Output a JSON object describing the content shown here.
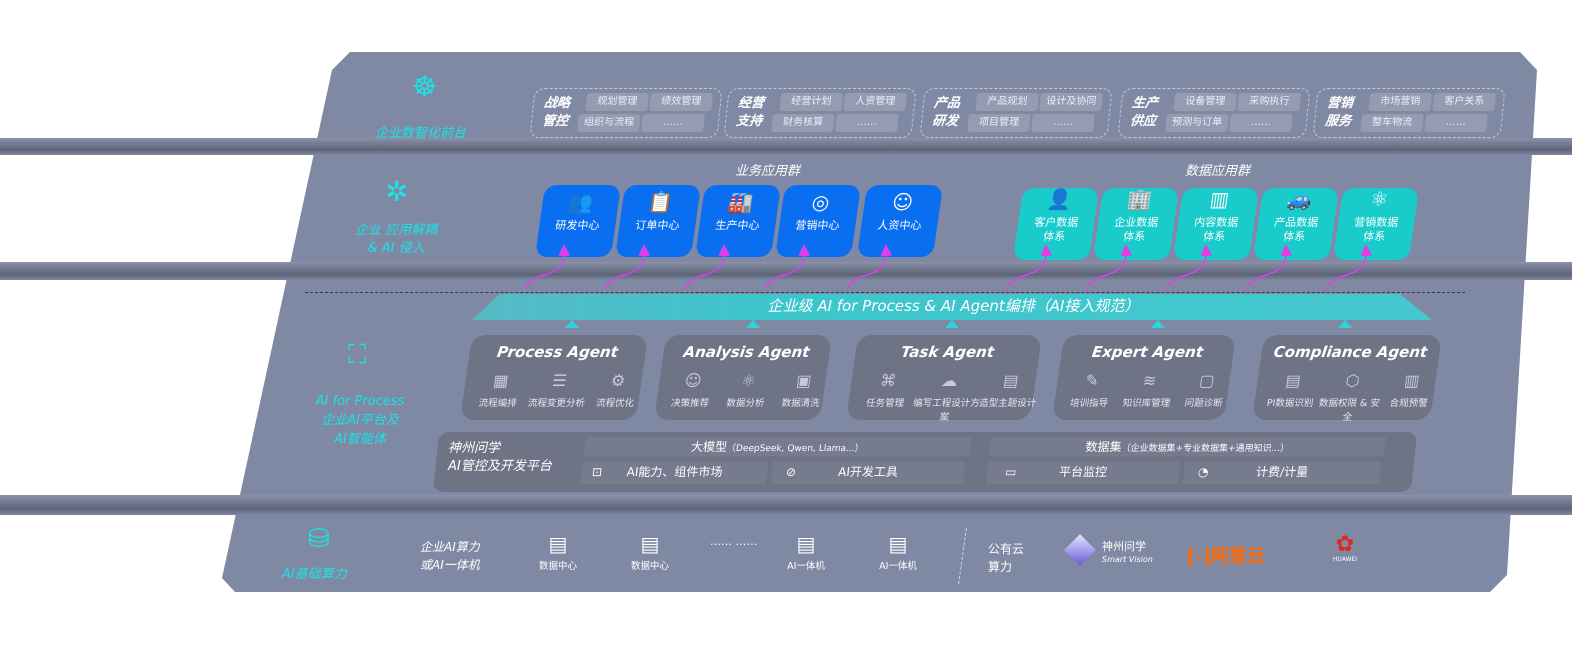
{
  "front": {
    "label": "企业数智化前台",
    "icon": "brain-icon",
    "groups": [
      {
        "title": [
          "战略",
          "管控"
        ],
        "chips": [
          "规划管理",
          "绩效管理",
          "组织与流程",
          "……"
        ]
      },
      {
        "title": [
          "经营",
          "支持"
        ],
        "chips": [
          "经营计划",
          "人资管理",
          "财务核算",
          "……"
        ]
      },
      {
        "title": [
          "产品",
          "研发"
        ],
        "chips": [
          "产品规划",
          "设计及协同",
          "项目管理",
          "……"
        ]
      },
      {
        "title": [
          "生产",
          "供应"
        ],
        "chips": [
          "设备管理",
          "采购执行",
          "预测与订单",
          "……"
        ]
      },
      {
        "title": [
          "营销",
          "服务"
        ],
        "chips": [
          "市场营销",
          "客户关系",
          "整车物流",
          "……"
        ]
      }
    ]
  },
  "apps": {
    "label": [
      "企业 应用解耦",
      "& AI 侵入"
    ],
    "icon": "network-node-icon",
    "business_title": "业务应用群",
    "business": [
      {
        "label": "研发中心",
        "icon": "team-icon",
        "glyph": "👥"
      },
      {
        "label": "订单中心",
        "icon": "clipboard-icon",
        "glyph": "📋"
      },
      {
        "label": "生产中心",
        "icon": "factory-icon",
        "glyph": "🏭"
      },
      {
        "label": "营销中心",
        "icon": "target-icon",
        "glyph": "◎"
      },
      {
        "label": "人资中心",
        "icon": "person-icon",
        "glyph": "☺"
      }
    ],
    "data_title": "数据应用群",
    "data": [
      {
        "label": [
          "客户数据",
          "体系"
        ],
        "icon": "user-icon",
        "glyph": "👤"
      },
      {
        "label": [
          "企业数据",
          "体系"
        ],
        "icon": "building-icon",
        "glyph": "🏢"
      },
      {
        "label": [
          "内容数据",
          "体系"
        ],
        "icon": "books-icon",
        "glyph": "▥"
      },
      {
        "label": [
          "产品数据",
          "体系"
        ],
        "icon": "car-icon",
        "glyph": "🚙"
      },
      {
        "label": [
          "营销数据",
          "体系"
        ],
        "icon": "atom-icon",
        "glyph": "⚛"
      }
    ]
  },
  "orchestration": "企业级 AI for Process & AI Agent编排（AI接入规范）",
  "ai": {
    "label": [
      "AI for Process",
      "企业AI平台及",
      "AI智能体"
    ],
    "icon": "face-scan-icon",
    "agents": [
      {
        "name": "Process Agent",
        "items": [
          [
            "流程编排",
            "chart-icon",
            "▦"
          ],
          [
            "流程变更分析",
            "list-icon",
            "☰"
          ],
          [
            "流程优化",
            "optimize-icon",
            "⚙"
          ]
        ]
      },
      {
        "name": "Analysis Agent",
        "items": [
          [
            "决策推荐",
            "head-icon",
            "☺"
          ],
          [
            "数据分析",
            "atom-icon",
            "⚛"
          ],
          [
            "数据清洗",
            "clean-icon",
            "▣"
          ]
        ]
      },
      {
        "name": "Task Agent",
        "items": [
          [
            "任务管理",
            "task-icon",
            "⌘"
          ],
          [
            "编写工程设计方案",
            "cloud-icon",
            "☁"
          ],
          [
            "造型主题设计",
            "design-icon",
            "▤"
          ]
        ]
      },
      {
        "name": "Expert Agent",
        "items": [
          [
            "培训指导",
            "training-icon",
            "✎"
          ],
          [
            "知识库管理",
            "layers-icon",
            "≋"
          ],
          [
            "问题诊断",
            "diagnose-icon",
            "▢"
          ]
        ]
      },
      {
        "name": "Compliance Agent",
        "items": [
          [
            "PI数据识别",
            "id-icon",
            "▤"
          ],
          [
            "数据权限 & 安全",
            "shield-icon",
            "⬡"
          ],
          [
            "合规预警",
            "alert-icon",
            "▥"
          ]
        ]
      }
    ],
    "platform": {
      "title": [
        "神州问学",
        "AI管控及开发平台"
      ],
      "llm": "大模型",
      "llm_note": "（DeepSeek, Qwen, Llama...）",
      "dataset": "数据集",
      "dataset_note": "（企业数据集+专业数据集+通用知识...）",
      "tools": [
        {
          "label": "AI能力、组件市场",
          "icon": "market-icon"
        },
        {
          "label": "AI开发工具",
          "icon": "dev-tool-icon"
        },
        {
          "label": "平台监控",
          "icon": "monitor-icon"
        },
        {
          "label": "计费/计量",
          "icon": "gauge-icon"
        }
      ]
    }
  },
  "infra": {
    "label": "AI基础算力",
    "icon": "database-icon",
    "enterprise": [
      "企业AI算力",
      "或AI一体机"
    ],
    "servers": [
      "数据中心",
      "数据中心",
      "AI一体机",
      "AI一体机"
    ],
    "ellipsis": "…… ……",
    "public": [
      "公有云",
      "算力"
    ],
    "logos": {
      "smartvision": [
        "神州问学",
        "Smart Vision"
      ],
      "aliyun": "阿里云",
      "huawei": "HUAWEI"
    },
    "colors": {
      "aliyun": "#ff6a00",
      "huawei": "#e1251b"
    }
  }
}
